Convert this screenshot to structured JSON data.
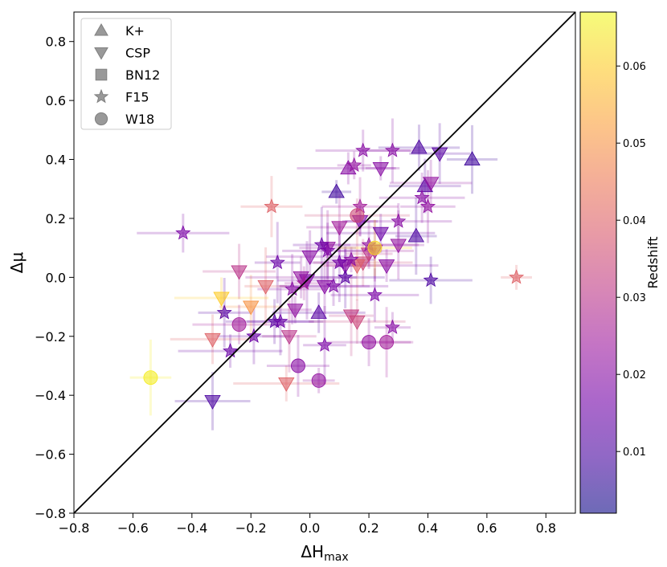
{
  "chart_data": {
    "type": "scatter",
    "xlabel_main": "ΔH",
    "xlabel_sub": "max",
    "ylabel": "Δμ",
    "xlim": [
      -0.8,
      0.9
    ],
    "ylim": [
      -0.8,
      0.9
    ],
    "x_ticks": [
      -0.8,
      -0.6,
      -0.4,
      -0.2,
      0.0,
      0.2,
      0.4,
      0.6,
      0.8
    ],
    "x_tick_labels": [
      "−0.8",
      "−0.6",
      "−0.4",
      "−0.2",
      "0.0",
      "0.2",
      "0.4",
      "0.6",
      "0.8"
    ],
    "y_ticks": [
      -0.8,
      -0.6,
      -0.4,
      -0.2,
      0.0,
      0.2,
      0.4,
      0.6,
      0.8
    ],
    "y_tick_labels": [
      "−0.8",
      "−0.6",
      "−0.4",
      "−0.2",
      "0.0",
      "0.2",
      "0.4",
      "0.6",
      "0.8"
    ],
    "grid": false,
    "legend_position": "top-left",
    "reference_line": {
      "type": "one-to-one",
      "color": "#000000"
    },
    "colorbar": {
      "label": "Redshift",
      "range": [
        0.002,
        0.067
      ],
      "ticks": [
        0.01,
        0.02,
        0.03,
        0.04,
        0.05,
        0.06
      ],
      "tick_labels": [
        "0.01",
        "0.02",
        "0.03",
        "0.04",
        "0.05",
        "0.06"
      ],
      "colormap": "plasma",
      "colors": [
        "#0d0887",
        "#46039f",
        "#7201a8",
        "#9c179e",
        "#bd3786",
        "#d8576b",
        "#ed7953",
        "#fb9f3a",
        "#fdca26",
        "#f0f921"
      ]
    },
    "legend": [
      {
        "label": "K+",
        "marker": "triangle-up"
      },
      {
        "label": "CSP",
        "marker": "triangle-down"
      },
      {
        "label": "BN12",
        "marker": "square"
      },
      {
        "label": "F15",
        "marker": "star"
      },
      {
        "label": "W18",
        "marker": "circle"
      }
    ],
    "series": [
      {
        "name": "K+",
        "marker": "triangle-up",
        "points": [
          {
            "x": 0.09,
            "y": 0.29,
            "z": 0.008
          },
          {
            "x": 0.37,
            "y": 0.44,
            "z": 0.01
          },
          {
            "x": 0.55,
            "y": 0.4,
            "z": 0.008
          },
          {
            "x": 0.13,
            "y": 0.37,
            "z": 0.02
          },
          {
            "x": 0.39,
            "y": 0.31,
            "z": 0.012
          },
          {
            "x": 0.36,
            "y": 0.14,
            "z": 0.01
          },
          {
            "x": 0.03,
            "y": -0.12,
            "z": 0.012
          }
        ]
      },
      {
        "name": "CSP",
        "marker": "triangle-down",
        "points": [
          {
            "x": 0.44,
            "y": 0.42,
            "z": 0.012
          },
          {
            "x": 0.24,
            "y": 0.37,
            "z": 0.02
          },
          {
            "x": 0.41,
            "y": 0.32,
            "z": 0.022
          },
          {
            "x": 0.3,
            "y": 0.11,
            "z": 0.022
          },
          {
            "x": 0.26,
            "y": 0.04,
            "z": 0.02
          },
          {
            "x": -0.24,
            "y": 0.02,
            "z": 0.03
          },
          {
            "x": -0.15,
            "y": -0.03,
            "z": 0.04
          },
          {
            "x": -0.3,
            "y": -0.07,
            "z": 0.06
          },
          {
            "x": -0.2,
            "y": -0.1,
            "z": 0.05
          },
          {
            "x": -0.05,
            "y": -0.11,
            "z": 0.022
          },
          {
            "x": -0.33,
            "y": -0.21,
            "z": 0.04
          },
          {
            "x": -0.07,
            "y": -0.2,
            "z": 0.03
          },
          {
            "x": -0.08,
            "y": -0.36,
            "z": 0.04
          },
          {
            "x": -0.33,
            "y": -0.42,
            "z": 0.01
          },
          {
            "x": 0.14,
            "y": -0.13,
            "z": 0.032
          },
          {
            "x": 0.16,
            "y": -0.15,
            "z": 0.034
          },
          {
            "x": 0.1,
            "y": 0.17,
            "z": 0.025
          },
          {
            "x": 0.17,
            "y": 0.19,
            "z": 0.018
          },
          {
            "x": 0.0,
            "y": 0.07,
            "z": 0.02
          },
          {
            "x": 0.06,
            "y": 0.1,
            "z": 0.022
          },
          {
            "x": 0.24,
            "y": 0.15,
            "z": 0.015
          },
          {
            "x": 0.22,
            "y": 0.09,
            "z": 0.024
          },
          {
            "x": 0.2,
            "y": 0.08,
            "z": 0.03
          },
          {
            "x": 0.18,
            "y": 0.05,
            "z": 0.035
          },
          {
            "x": 0.16,
            "y": 0.04,
            "z": 0.04
          },
          {
            "x": 0.12,
            "y": 0.04,
            "z": 0.02
          },
          {
            "x": 0.05,
            "y": -0.03,
            "z": 0.02
          },
          {
            "x": -0.01,
            "y": -0.01,
            "z": 0.018
          },
          {
            "x": -0.03,
            "y": 0.0,
            "z": 0.022
          }
        ]
      },
      {
        "name": "F15",
        "marker": "star",
        "points": [
          {
            "x": -0.43,
            "y": 0.15,
            "z": 0.018
          },
          {
            "x": -0.13,
            "y": 0.24,
            "z": 0.04
          },
          {
            "x": 0.7,
            "y": 0.0,
            "z": 0.04
          },
          {
            "x": 0.41,
            "y": -0.01,
            "z": 0.01
          },
          {
            "x": -0.29,
            "y": -0.12,
            "z": 0.012
          },
          {
            "x": -0.27,
            "y": -0.25,
            "z": 0.015
          },
          {
            "x": -0.19,
            "y": -0.2,
            "z": 0.015
          },
          {
            "x": 0.05,
            "y": -0.23,
            "z": 0.018
          },
          {
            "x": 0.18,
            "y": 0.43,
            "z": 0.02
          },
          {
            "x": 0.28,
            "y": 0.43,
            "z": 0.02
          },
          {
            "x": 0.15,
            "y": 0.38,
            "z": 0.022
          },
          {
            "x": 0.38,
            "y": 0.27,
            "z": 0.02
          },
          {
            "x": 0.4,
            "y": 0.24,
            "z": 0.022
          },
          {
            "x": 0.3,
            "y": 0.19,
            "z": 0.02
          },
          {
            "x": 0.17,
            "y": 0.24,
            "z": 0.025
          },
          {
            "x": -0.11,
            "y": 0.05,
            "z": 0.015
          },
          {
            "x": -0.12,
            "y": -0.15,
            "z": 0.012
          },
          {
            "x": -0.1,
            "y": -0.15,
            "z": 0.015
          },
          {
            "x": 0.28,
            "y": -0.17,
            "z": 0.02
          },
          {
            "x": 0.22,
            "y": -0.06,
            "z": 0.018
          },
          {
            "x": 0.04,
            "y": 0.11,
            "z": 0.015
          },
          {
            "x": 0.08,
            "y": -0.03,
            "z": 0.018
          },
          {
            "x": 0.12,
            "y": 0.0,
            "z": 0.012
          },
          {
            "x": 0.14,
            "y": 0.06,
            "z": 0.02
          },
          {
            "x": 0.2,
            "y": 0.11,
            "z": 0.022
          },
          {
            "x": -0.06,
            "y": -0.04,
            "z": 0.02
          },
          {
            "x": -0.02,
            "y": -0.02,
            "z": 0.025
          },
          {
            "x": 0.06,
            "y": 0.09,
            "z": 0.018
          },
          {
            "x": 0.1,
            "y": 0.05,
            "z": 0.016
          }
        ]
      },
      {
        "name": "W18",
        "marker": "circle",
        "points": [
          {
            "x": -0.54,
            "y": -0.34,
            "z": 0.065
          },
          {
            "x": -0.24,
            "y": -0.16,
            "z": 0.025
          },
          {
            "x": -0.04,
            "y": -0.3,
            "z": 0.02
          },
          {
            "x": 0.03,
            "y": -0.35,
            "z": 0.022
          },
          {
            "x": 0.2,
            "y": -0.22,
            "z": 0.022
          },
          {
            "x": 0.26,
            "y": -0.22,
            "z": 0.025
          },
          {
            "x": 0.16,
            "y": 0.21,
            "z": 0.035
          },
          {
            "x": 0.22,
            "y": 0.1,
            "z": 0.062
          }
        ]
      }
    ]
  }
}
